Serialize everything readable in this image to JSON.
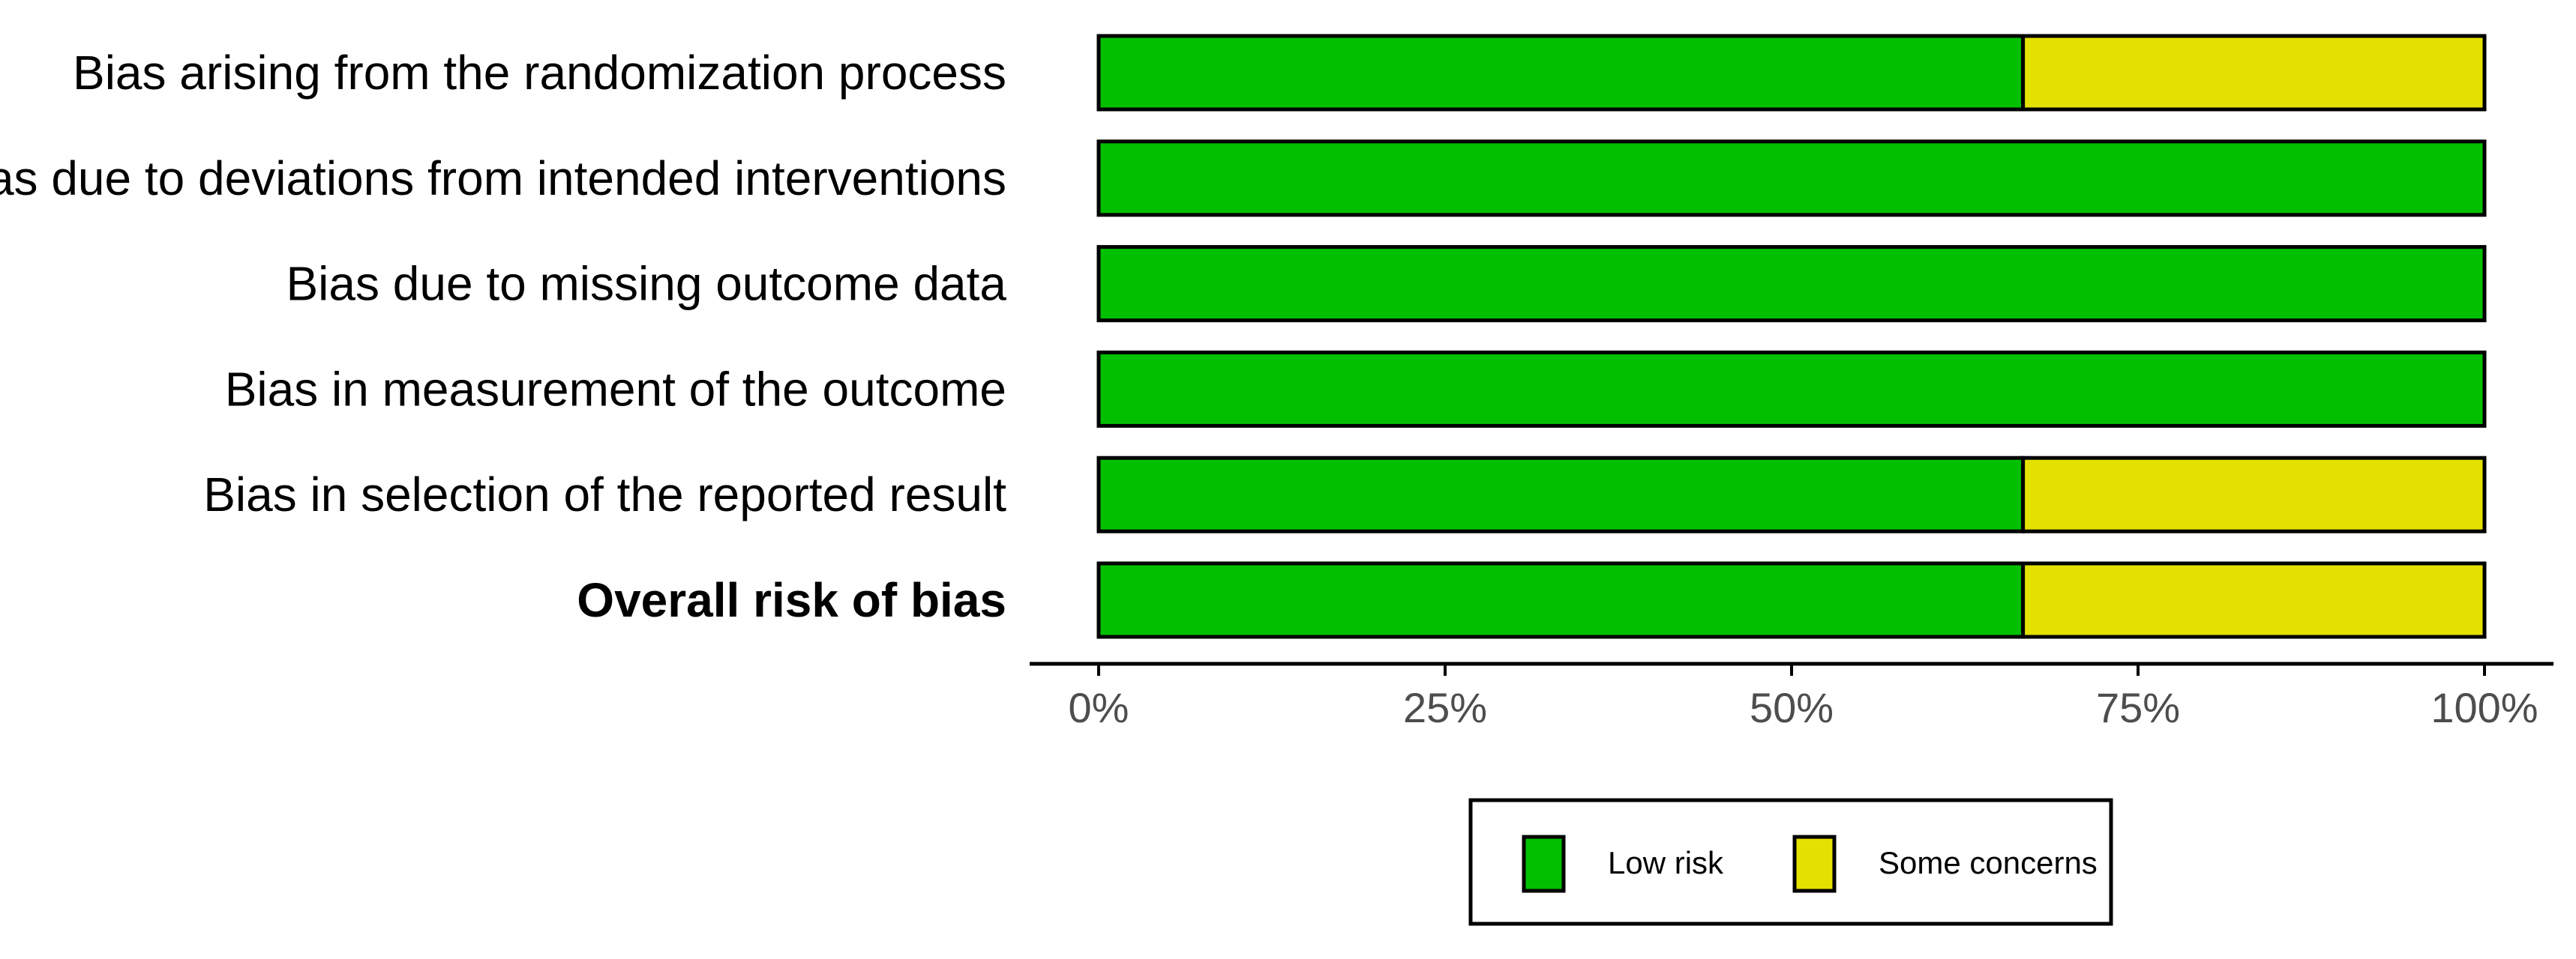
{
  "chart_data": {
    "type": "bar",
    "orientation": "horizontal",
    "stacked": true,
    "categories": [
      "Bias arising from the randomization process",
      "Bias due to deviations from intended interventions",
      "Bias due to missing outcome data",
      "Bias in measurement of the outcome",
      "Bias in selection of the reported result",
      "Overall risk of bias"
    ],
    "bold_categories": [
      "Overall risk of bias"
    ],
    "series": [
      {
        "name": "Low risk",
        "color": "#02c000",
        "values": [
          66.7,
          100,
          100,
          100,
          66.7,
          66.7
        ]
      },
      {
        "name": "Some concerns",
        "color": "#e3e100",
        "values": [
          33.3,
          0,
          0,
          0,
          33.3,
          33.3
        ]
      }
    ],
    "xlim": [
      0,
      100
    ],
    "x_ticks": [
      0,
      25,
      50,
      75,
      100
    ],
    "x_tick_labels": [
      "0%",
      "25%",
      "50%",
      "75%",
      "100%"
    ],
    "title": "",
    "xlabel": "",
    "ylabel": "",
    "grid": false,
    "legend_position": "bottom"
  }
}
